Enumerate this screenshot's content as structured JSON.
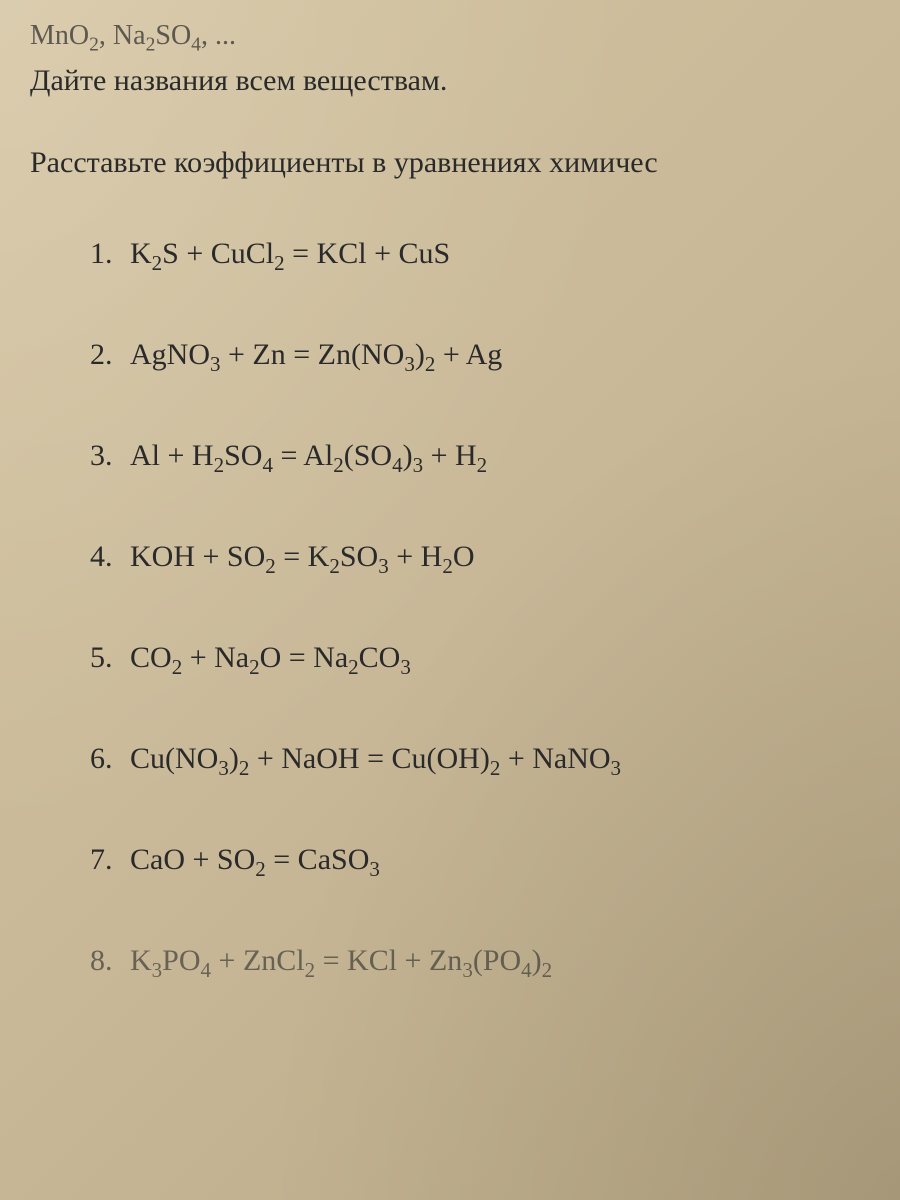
{
  "partial_top_formula": "MnO₂, Na₂SO₄, ...",
  "instruction_1": "Дайте названия всем веществам.",
  "instruction_2": "Расставьте коэффициенты в уравнениях химичес",
  "equations": [
    {
      "number": "1.",
      "formula_parts": [
        {
          "text": "K",
          "sub": "2"
        },
        {
          "text": "S + CuCl",
          "sub": "2"
        },
        {
          "text": " = KCl + CuS"
        }
      ]
    },
    {
      "number": "2.",
      "formula_parts": [
        {
          "text": "AgNO",
          "sub": "3"
        },
        {
          "text": " + Zn = Zn(NO",
          "sub": "3"
        },
        {
          "text": ")",
          "sub": "2"
        },
        {
          "text": " + Ag"
        }
      ]
    },
    {
      "number": "3.",
      "formula_parts": [
        {
          "text": "Al + H",
          "sub": "2"
        },
        {
          "text": "SO",
          "sub": "4"
        },
        {
          "text": " = Al",
          "sub": "2"
        },
        {
          "text": "(SO",
          "sub": "4"
        },
        {
          "text": ")",
          "sub": "3"
        },
        {
          "text": " + H",
          "sub": "2"
        }
      ]
    },
    {
      "number": "4.",
      "formula_parts": [
        {
          "text": "KOH + SO",
          "sub": "2"
        },
        {
          "text": " = K",
          "sub": "2"
        },
        {
          "text": "SO",
          "sub": "3"
        },
        {
          "text": " + H",
          "sub": "2"
        },
        {
          "text": "O"
        }
      ]
    },
    {
      "number": "5.",
      "formula_parts": [
        {
          "text": "CO",
          "sub": "2"
        },
        {
          "text": " + Na",
          "sub": "2"
        },
        {
          "text": "O = Na",
          "sub": "2"
        },
        {
          "text": "CO",
          "sub": "3"
        }
      ]
    },
    {
      "number": "6.",
      "formula_parts": [
        {
          "text": "Cu(NO",
          "sub": "3"
        },
        {
          "text": ")",
          "sub": "2"
        },
        {
          "text": " + NaOH = Cu(OH)",
          "sub": "2"
        },
        {
          "text": " + NaNO",
          "sub": "3"
        }
      ]
    },
    {
      "number": "7.",
      "formula_parts": [
        {
          "text": "CaO + SO",
          "sub": "2"
        },
        {
          "text": " = CaSO",
          "sub": "3"
        }
      ]
    },
    {
      "number": "8.",
      "formula_parts": [
        {
          "text": "K",
          "sub": "3"
        },
        {
          "text": "PO",
          "sub": "4"
        },
        {
          "text": " + ZnCl",
          "sub": "2"
        },
        {
          "text": " = KCl + Zn",
          "sub": "3"
        },
        {
          "text": "(PO",
          "sub": "4"
        },
        {
          "text": ")",
          "sub": "2"
        }
      ]
    }
  ],
  "styling": {
    "background_gradient_start": "#d4c4a0",
    "background_gradient_mid": "#c8b898",
    "background_gradient_end": "#b8a885",
    "text_color": "#2a2a2a",
    "font_family": "Times New Roman",
    "instruction_fontsize": 30,
    "equation_fontsize": 30,
    "equation_spacing": 62,
    "equation_indent": 60,
    "subscript_scale": 0.7
  }
}
